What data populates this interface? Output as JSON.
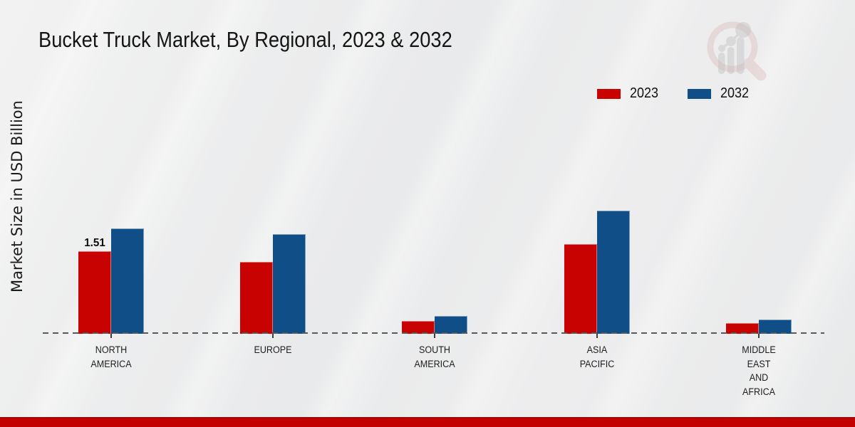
{
  "title": "Bucket Truck Market, By Regional, 2023 & 2032",
  "y_axis_label": "Market Size in USD Billion",
  "legend": {
    "items": [
      {
        "label": "2023",
        "color": "#c80101"
      },
      {
        "label": "2032",
        "color": "#0f4e87"
      }
    ]
  },
  "colors": {
    "series_2023": "#c80101",
    "series_2032": "#0f4e87",
    "footer_band": "#c40101",
    "axis_dash": "#595959",
    "background": "#ececec"
  },
  "watermark_icon": "magnifier-bar-chart-logo",
  "chart_data": {
    "type": "bar",
    "title": "Bucket Truck Market, By Regional, 2023 & 2032",
    "xlabel": "",
    "ylabel": "Market Size in USD Billion",
    "value_unit": "USD Billion",
    "categories": [
      "NORTH AMERICA",
      "EUROPE",
      "SOUTH AMERICA",
      "ASIA PACIFIC",
      "MIDDLE EAST AND AFRICA"
    ],
    "category_label_lines": [
      [
        "NORTH",
        "AMERICA"
      ],
      [
        "EUROPE"
      ],
      [
        "SOUTH",
        "AMERICA"
      ],
      [
        "ASIA",
        "PACIFIC"
      ],
      [
        "MIDDLE",
        "EAST",
        "AND",
        "AFRICA"
      ]
    ],
    "series": [
      {
        "name": "2023",
        "color": "#c80101",
        "values": [
          1.51,
          1.31,
          0.23,
          1.64,
          0.2
        ],
        "data_labels": [
          "1.51",
          "",
          "",
          "",
          ""
        ]
      },
      {
        "name": "2032",
        "color": "#0f4e87",
        "values": [
          1.93,
          1.82,
          0.33,
          2.25,
          0.26
        ],
        "data_labels": [
          "",
          "",
          "",
          "",
          ""
        ]
      }
    ],
    "ylim": [
      0,
      2.6
    ],
    "y_axis_ticks_visible": false,
    "grid": false,
    "legend_position": "top-right",
    "baseline_style": "dashed"
  }
}
